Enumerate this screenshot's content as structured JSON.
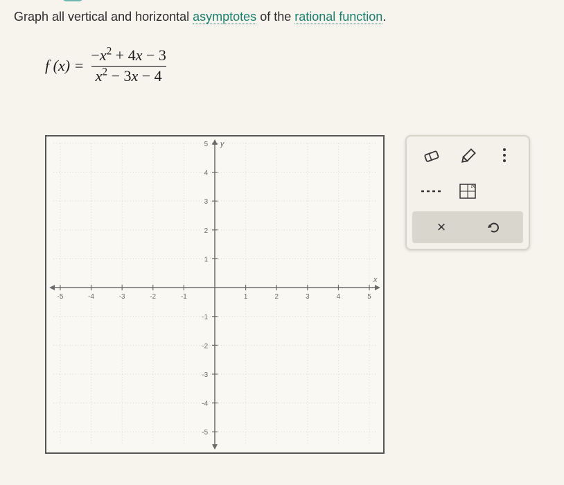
{
  "prompt": {
    "prefix": "Graph all vertical and horizontal ",
    "term1": "asymptotes",
    "mid": " of the ",
    "term2": "rational function",
    "suffix": "."
  },
  "equation": {
    "lhs": "f (x) =",
    "numerator": "−x² + 4x − 3",
    "denominator": "x² − 3x − 4"
  },
  "graph": {
    "x_min": -5,
    "x_max": 5,
    "y_min": -5,
    "y_max": 5,
    "x_ticks": [
      -5,
      -4,
      -3,
      -2,
      -1,
      1,
      2,
      3,
      4,
      5
    ],
    "y_ticks": [
      -5,
      -4,
      -3,
      -2,
      -1,
      1,
      2,
      3,
      4,
      5
    ],
    "grid_color": "#d9d6cb",
    "axis_color": "#6a6a6a",
    "tick_label_color": "#6a6a6a",
    "x_label": "x",
    "y_label": "y"
  },
  "tools": {
    "eraser": "eraser-icon",
    "pencil": "pencil-icon",
    "dashed_vertical": "dashed-line-icon",
    "dashed_horizontal": "dashed-h-icon",
    "point_grid": "fx-grid-icon",
    "close": "×",
    "undo": "↺"
  },
  "colors": {
    "background": "#f6f4ed",
    "border": "#555555",
    "palette_border": "#d7d4ca",
    "palette_bg": "#f3f1e9",
    "bottom_tool_bg": "#d8d6cd",
    "link": "#1a7f6e"
  }
}
